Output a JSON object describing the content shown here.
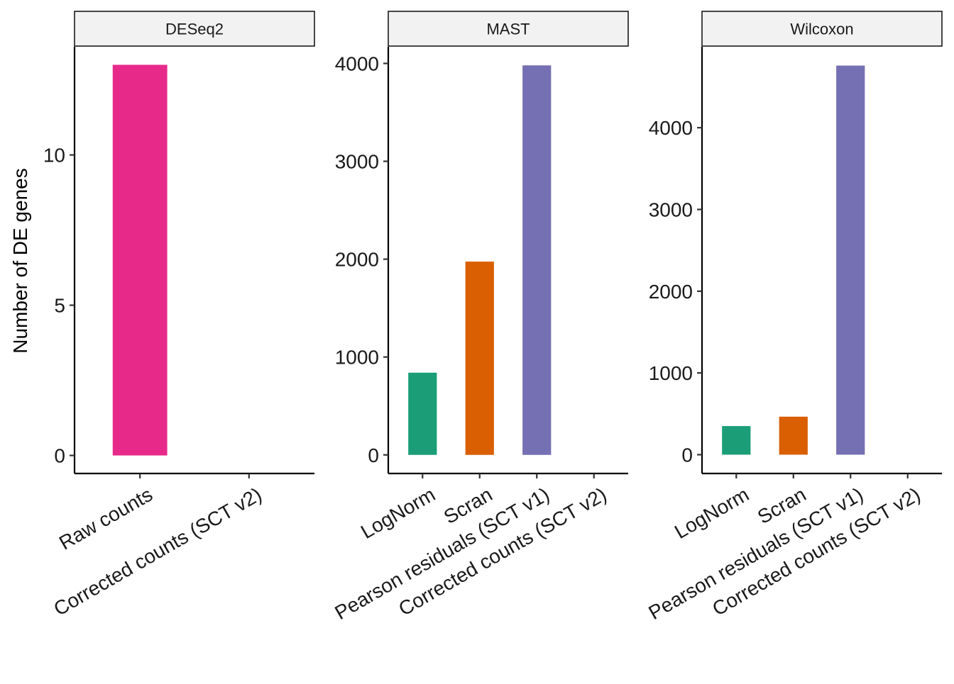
{
  "chart_data": {
    "type": "bar",
    "ylabel": "Number of DE genes",
    "xlabel": "",
    "legend": "none",
    "grid": false,
    "colors": {
      "Raw counts": "#E7298A",
      "LogNorm": "#1B9E77",
      "Scran": "#D95F02",
      "Pearson residuals (SCT v1)": "#7570B3",
      "Corrected counts (SCT v2)": "#66A61E"
    },
    "panels": [
      {
        "title": "DESeq2",
        "categories": [
          "Raw counts",
          "Corrected counts (SCT v2)"
        ],
        "values": [
          13,
          0
        ],
        "ylim": [
          -0.6,
          13.6
        ],
        "yticks": [
          0,
          5,
          10
        ]
      },
      {
        "title": "MAST",
        "categories": [
          "LogNorm",
          "Scran",
          "Pearson residuals (SCT v1)",
          "Corrected counts (SCT v2)"
        ],
        "values": [
          840,
          1975,
          3980,
          0
        ],
        "ylim": [
          -190,
          4170
        ],
        "yticks": [
          0,
          1000,
          2000,
          3000,
          4000
        ]
      },
      {
        "title": "Wilcoxon",
        "categories": [
          "LogNorm",
          "Scran",
          "Pearson residuals (SCT v1)",
          "Corrected counts (SCT v2)"
        ],
        "values": [
          350,
          465,
          4760,
          0
        ],
        "ylim": [
          -230,
          4990
        ],
        "yticks": [
          0,
          1000,
          2000,
          3000,
          4000
        ]
      }
    ]
  }
}
